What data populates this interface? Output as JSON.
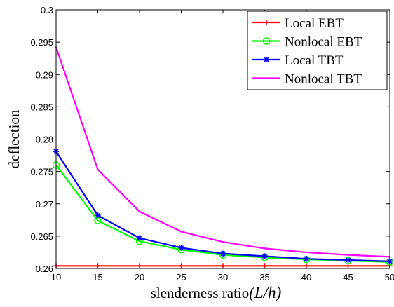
{
  "chart_data": {
    "type": "line",
    "xlabel": "slenderness ratio",
    "xlabel_math": "(L/h)",
    "ylabel": "deflection",
    "xlim": [
      10,
      50
    ],
    "ylim": [
      0.26,
      0.3
    ],
    "x": [
      10,
      15,
      20,
      25,
      30,
      35,
      40,
      45,
      50
    ],
    "x_ticks": [
      "10",
      "15",
      "20",
      "25",
      "30",
      "35",
      "40",
      "45",
      "50"
    ],
    "y_ticks": [
      "0.26",
      "0.265",
      "0.27",
      "0.275",
      "0.28",
      "0.285",
      "0.29",
      "0.295",
      "0.3"
    ],
    "y_tick_values": [
      0.26,
      0.265,
      0.27,
      0.275,
      0.28,
      0.285,
      0.29,
      0.295,
      0.3
    ],
    "grid": false,
    "legend_position": "top-right",
    "series": [
      {
        "name": "Local EBT",
        "color": "#ff0000",
        "marker": "plus",
        "values": [
          0.2604,
          0.2604,
          0.2604,
          0.2604,
          0.2604,
          0.2604,
          0.2604,
          0.2604,
          0.2604
        ]
      },
      {
        "name": "Nonlocal EBT",
        "color": "#00ff00",
        "marker": "circle",
        "values": [
          0.276,
          0.2674,
          0.2642,
          0.2629,
          0.2621,
          0.2617,
          0.2614,
          0.2612,
          0.261
        ]
      },
      {
        "name": "Local TBT",
        "color": "#0000ff",
        "marker": "star",
        "values": [
          0.2781,
          0.2682,
          0.2647,
          0.2632,
          0.2623,
          0.2619,
          0.2615,
          0.2613,
          0.2611
        ]
      },
      {
        "name": "Nonlocal TBT",
        "color": "#ff00ff",
        "marker": "point",
        "values": [
          0.2942,
          0.2753,
          0.2688,
          0.2657,
          0.2641,
          0.2631,
          0.2625,
          0.2621,
          0.2618
        ]
      }
    ]
  }
}
